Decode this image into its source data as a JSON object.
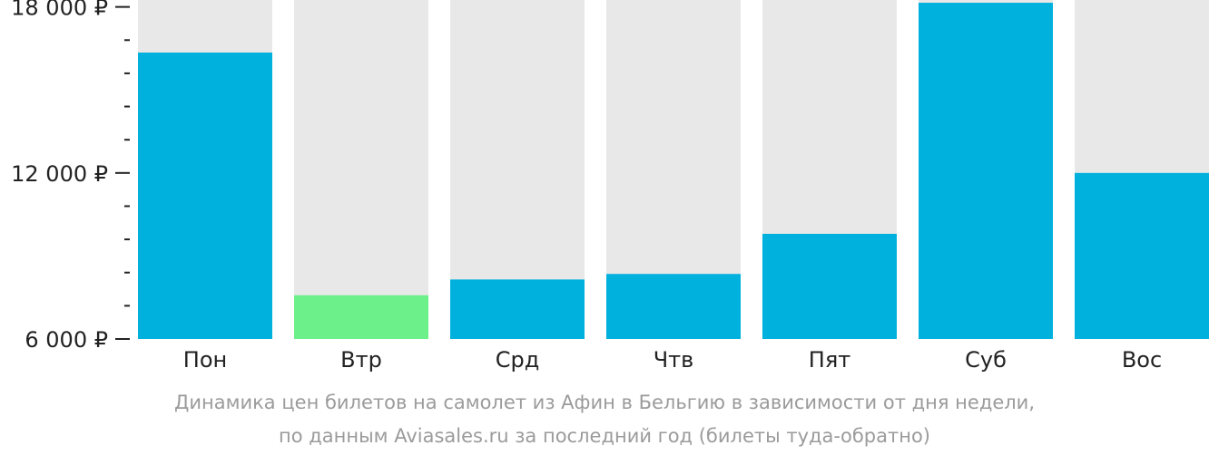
{
  "chart_data": {
    "type": "bar",
    "categories": [
      "Пон",
      "Втр",
      "Срд",
      "Чтв",
      "Пят",
      "Суб",
      "Вос"
    ],
    "values": [
      16350,
      7580,
      8150,
      8350,
      9800,
      18150,
      12000
    ],
    "ylim": [
      6000,
      18250
    ],
    "yticks_major": [
      6000,
      12000,
      18000
    ],
    "yticks_major_labels": [
      "6 000 ₽",
      "12 000 ₽",
      "18 000 ₽"
    ],
    "yticks_minor": [
      7200,
      8400,
      9600,
      10800,
      13200,
      14400,
      15600,
      16800
    ],
    "highlight_index": 1,
    "colors": {
      "bar": "#00b0dd",
      "bar_highlight": "#6cf089",
      "bar_background": "#e8e8e8",
      "tick_text": "#222222",
      "caption_text": "#9b9b9b"
    },
    "caption": [
      "Динамика цен билетов на самолет из Афин в Бельгию в зависимости от дня недели,",
      "по данным Aviasales.ru за последний год (билеты туда-обратно)"
    ]
  }
}
